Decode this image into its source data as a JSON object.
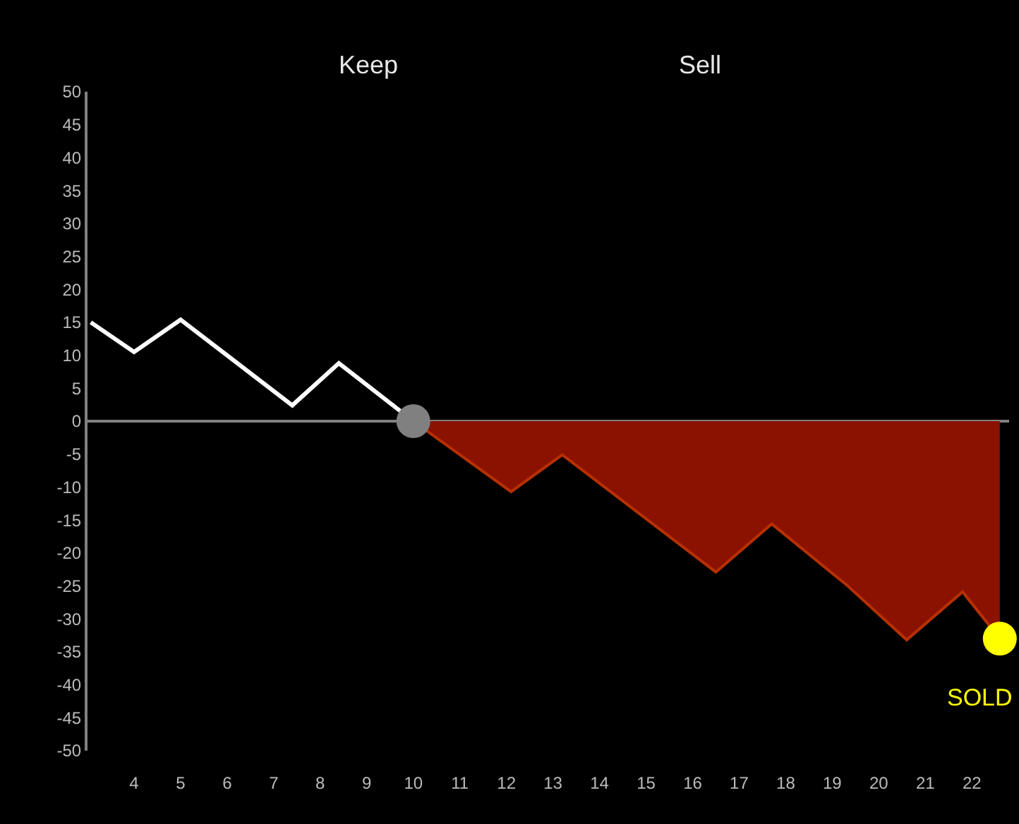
{
  "chart_data": {
    "type": "line",
    "series": [
      {
        "color": "#ffffff",
        "marker": "none",
        "x": [
          3.07,
          4,
          5,
          7.4,
          8.4,
          10
        ],
        "values": [
          15,
          10.5,
          15.4,
          2.4,
          8.8,
          0
        ]
      },
      {
        "type": "area",
        "color": "#8b1200",
        "marker": "none",
        "x": [
          10,
          12.1,
          13.2,
          16.5,
          17.7,
          19.3,
          20.6,
          21.8,
          22.6
        ],
        "values": [
          0,
          -10.7,
          -5.1,
          -22.9,
          -15.6,
          -24.8,
          -33.2,
          -25.9,
          -33
        ]
      },
      {
        "type": "scatter",
        "color": "#808080",
        "marker": "circle",
        "x": [
          10
        ],
        "values": [
          0
        ]
      },
      {
        "type": "scatter",
        "color": "#ffff00",
        "marker": "circle",
        "x": [
          22.6
        ],
        "values": [
          -33
        ]
      }
    ],
    "annotations": [
      "Keep",
      "Sell",
      {
        "text": "SOLD",
        "x": 22.6,
        "y": -33
      }
    ],
    "ref_lines": [
      {
        "axis": "y",
        "value": 0,
        "color": "#808080"
      }
    ],
    "xlim": [
      3,
      22.8
    ],
    "xticks": [
      4,
      5,
      6,
      7,
      8,
      9,
      10,
      11,
      12,
      13,
      14,
      15,
      16,
      17,
      18,
      19,
      20,
      21,
      22
    ],
    "ylim": [
      -50,
      50
    ],
    "yticks": [
      -50,
      -45,
      -40,
      -35,
      -30,
      -25,
      -20,
      -15,
      -10,
      -5,
      0,
      5,
      10,
      15,
      20,
      25,
      30,
      35,
      40,
      45,
      50
    ],
    "grid": false,
    "line_style": "solid"
  }
}
